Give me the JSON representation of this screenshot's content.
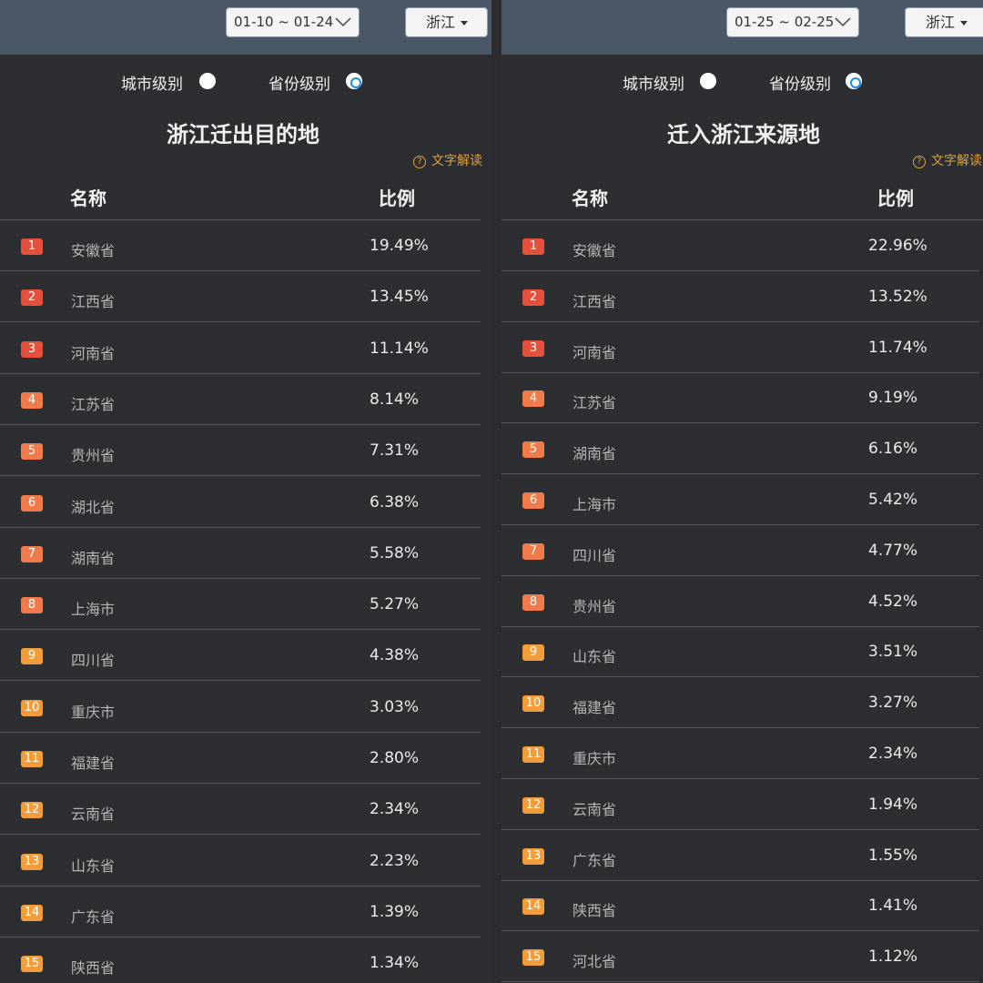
{
  "colors": {
    "topbar": "#495767",
    "background": "#2d2e32",
    "accent_radio": "#1f8fe0",
    "explain_text": "#e0a23a",
    "rank_1_3": "#e4503b",
    "rank_4_8": "#f07a4a",
    "rank_9_15": "#f39c3a"
  },
  "left": {
    "date_range": "01-10 ~ 01-24",
    "province_select": "浙江",
    "radio_city": "城市级别",
    "radio_province": "省份级别",
    "selected_radio": "province",
    "title": "浙江迁出目的地",
    "text_explain": "文字解读",
    "col_name": "名称",
    "col_ratio": "比例",
    "rows": [
      {
        "rank": "1",
        "name": "安徽省",
        "value": "19.49%"
      },
      {
        "rank": "2",
        "name": "江西省",
        "value": "13.45%"
      },
      {
        "rank": "3",
        "name": "河南省",
        "value": "11.14%"
      },
      {
        "rank": "4",
        "name": "江苏省",
        "value": "8.14%"
      },
      {
        "rank": "5",
        "name": "贵州省",
        "value": "7.31%"
      },
      {
        "rank": "6",
        "name": "湖北省",
        "value": "6.38%"
      },
      {
        "rank": "7",
        "name": "湖南省",
        "value": "5.58%"
      },
      {
        "rank": "8",
        "name": "上海市",
        "value": "5.27%"
      },
      {
        "rank": "9",
        "name": "四川省",
        "value": "4.38%"
      },
      {
        "rank": "10",
        "name": "重庆市",
        "value": "3.03%"
      },
      {
        "rank": "11",
        "name": "福建省",
        "value": "2.80%"
      },
      {
        "rank": "12",
        "name": "云南省",
        "value": "2.34%"
      },
      {
        "rank": "13",
        "name": "山东省",
        "value": "2.23%"
      },
      {
        "rank": "14",
        "name": "广东省",
        "value": "1.39%"
      },
      {
        "rank": "15",
        "name": "陕西省",
        "value": "1.34%"
      }
    ]
  },
  "right": {
    "date_range": "01-25 ~ 02-25",
    "province_select": "浙江",
    "radio_city": "城市级别",
    "radio_province": "省份级别",
    "selected_radio": "province",
    "title": "迁入浙江来源地",
    "text_explain": "文字解读",
    "col_name": "名称",
    "col_ratio": "比例",
    "rows": [
      {
        "rank": "1",
        "name": "安徽省",
        "value": "22.96%"
      },
      {
        "rank": "2",
        "name": "江西省",
        "value": "13.52%"
      },
      {
        "rank": "3",
        "name": "河南省",
        "value": "11.74%"
      },
      {
        "rank": "4",
        "name": "江苏省",
        "value": "9.19%"
      },
      {
        "rank": "5",
        "name": "湖南省",
        "value": "6.16%"
      },
      {
        "rank": "6",
        "name": "上海市",
        "value": "5.42%"
      },
      {
        "rank": "7",
        "name": "四川省",
        "value": "4.77%"
      },
      {
        "rank": "8",
        "name": "贵州省",
        "value": "4.52%"
      },
      {
        "rank": "9",
        "name": "山东省",
        "value": "3.51%"
      },
      {
        "rank": "10",
        "name": "福建省",
        "value": "3.27%"
      },
      {
        "rank": "11",
        "name": "重庆市",
        "value": "2.34%"
      },
      {
        "rank": "12",
        "name": "云南省",
        "value": "1.94%"
      },
      {
        "rank": "13",
        "name": "广东省",
        "value": "1.55%"
      },
      {
        "rank": "14",
        "name": "陕西省",
        "value": "1.41%"
      },
      {
        "rank": "15",
        "name": "河北省",
        "value": "1.12%"
      }
    ]
  }
}
